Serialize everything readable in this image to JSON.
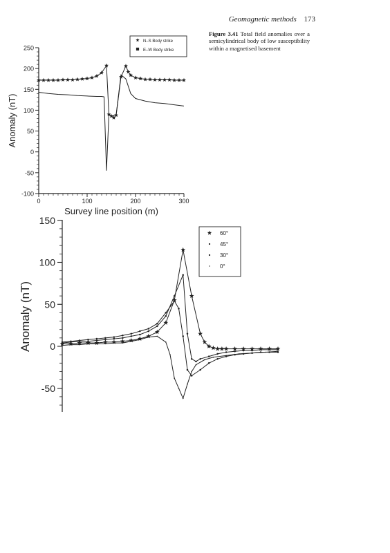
{
  "page": {
    "running_title": "Geomagnetic methods",
    "page_number": "173",
    "caption_label": "Figure 3.41",
    "caption_text": "Total field anomalies over a semicylindrical body of low susceptibility within a magnetised basement"
  },
  "chart_data": [
    {
      "type": "line",
      "title": "",
      "xlabel": "Survey line position (m)",
      "ylabel": "Anomaly (nT)",
      "xlim": [
        0,
        300
      ],
      "ylim": [
        -100,
        250
      ],
      "xticks": [
        0,
        100,
        200,
        300
      ],
      "yticks": [
        -100,
        -50,
        0,
        50,
        100,
        150,
        200,
        250
      ],
      "legend_position": "top-right",
      "series": [
        {
          "name": "N–S Body strike",
          "marker": "star",
          "x": [
            0,
            10,
            20,
            30,
            40,
            50,
            60,
            70,
            80,
            90,
            100,
            110,
            120,
            130,
            140,
            145,
            150,
            155,
            160,
            170,
            180,
            185,
            190,
            200,
            210,
            220,
            230,
            240,
            250,
            260,
            270,
            280,
            290,
            300
          ],
          "y": [
            172,
            172,
            172,
            172,
            172,
            173,
            173,
            173,
            174,
            175,
            176,
            178,
            182,
            190,
            207,
            90,
            86,
            82,
            88,
            180,
            206,
            192,
            184,
            178,
            176,
            174,
            174,
            173,
            173,
            173,
            173,
            172,
            172,
            172
          ]
        },
        {
          "name": "E–W Body strike",
          "marker": "none",
          "x": [
            0,
            20,
            40,
            60,
            80,
            100,
            120,
            130,
            135,
            140,
            145,
            150,
            160,
            170,
            180,
            190,
            200,
            220,
            240,
            260,
            280,
            300
          ],
          "y": [
            143,
            140,
            138,
            137,
            135,
            134,
            133,
            133,
            132,
            -45,
            90,
            85,
            90,
            185,
            175,
            140,
            128,
            122,
            118,
            116,
            113,
            110
          ]
        }
      ]
    },
    {
      "type": "line",
      "title": "",
      "xlabel": "",
      "ylabel": "Anomaly (nT)",
      "ylim": [
        -75,
        150
      ],
      "yticks": [
        -50,
        0,
        50,
        100,
        150
      ],
      "xlim": [
        0,
        100
      ],
      "legend_position": "top-right",
      "series": [
        {
          "name": "60°",
          "marker": "star",
          "x": [
            0,
            4,
            8,
            12,
            16,
            20,
            24,
            28,
            32,
            36,
            40,
            44,
            48,
            52,
            56,
            60,
            64,
            66,
            68,
            70,
            72,
            74,
            76,
            80,
            84,
            88,
            92,
            96,
            100
          ],
          "y": [
            3,
            3,
            4,
            4,
            4,
            5,
            5,
            6,
            7,
            9,
            12,
            17,
            28,
            55,
            115,
            60,
            15,
            5,
            0,
            -2,
            -3,
            -3,
            -3,
            -3,
            -3,
            -3,
            -3,
            -3,
            -3
          ]
        },
        {
          "name": "45°",
          "marker": "dot",
          "x": [
            0,
            4,
            8,
            12,
            16,
            20,
            24,
            28,
            32,
            36,
            40,
            44,
            48,
            52,
            56,
            58,
            60,
            62,
            64,
            68,
            72,
            76,
            80,
            84,
            88,
            92,
            96,
            100
          ],
          "y": [
            4,
            5,
            6,
            6,
            7,
            8,
            9,
            10,
            12,
            14,
            18,
            24,
            36,
            60,
            85,
            15,
            -15,
            -18,
            -15,
            -12,
            -9,
            -7,
            -6,
            -5,
            -5,
            -4,
            -4,
            -4
          ]
        },
        {
          "name": "30°",
          "marker": "dot",
          "x": [
            0,
            4,
            8,
            12,
            16,
            20,
            24,
            28,
            32,
            36,
            40,
            44,
            48,
            52,
            54,
            56,
            58,
            60,
            64,
            68,
            72,
            76,
            80,
            84,
            88,
            92,
            96,
            100
          ],
          "y": [
            5,
            6,
            7,
            8,
            9,
            10,
            11,
            13,
            15,
            18,
            21,
            27,
            40,
            54,
            45,
            12,
            -28,
            -35,
            -28,
            -20,
            -15,
            -12,
            -10,
            -9,
            -8,
            -7,
            -7,
            -7
          ]
        },
        {
          "name": "0°",
          "marker": "dot",
          "x": [
            0,
            4,
            8,
            12,
            16,
            20,
            24,
            28,
            32,
            36,
            40,
            44,
            48,
            50,
            52,
            54,
            56,
            58,
            60,
            62,
            66,
            70,
            76,
            82,
            88,
            94,
            100
          ],
          "y": [
            1,
            2,
            2,
            3,
            3,
            3,
            4,
            4,
            6,
            8,
            11,
            12,
            5,
            -10,
            -38,
            -50,
            -62,
            -45,
            -30,
            -22,
            -16,
            -13,
            -11,
            -9,
            -8,
            -7,
            -6
          ]
        }
      ]
    }
  ]
}
